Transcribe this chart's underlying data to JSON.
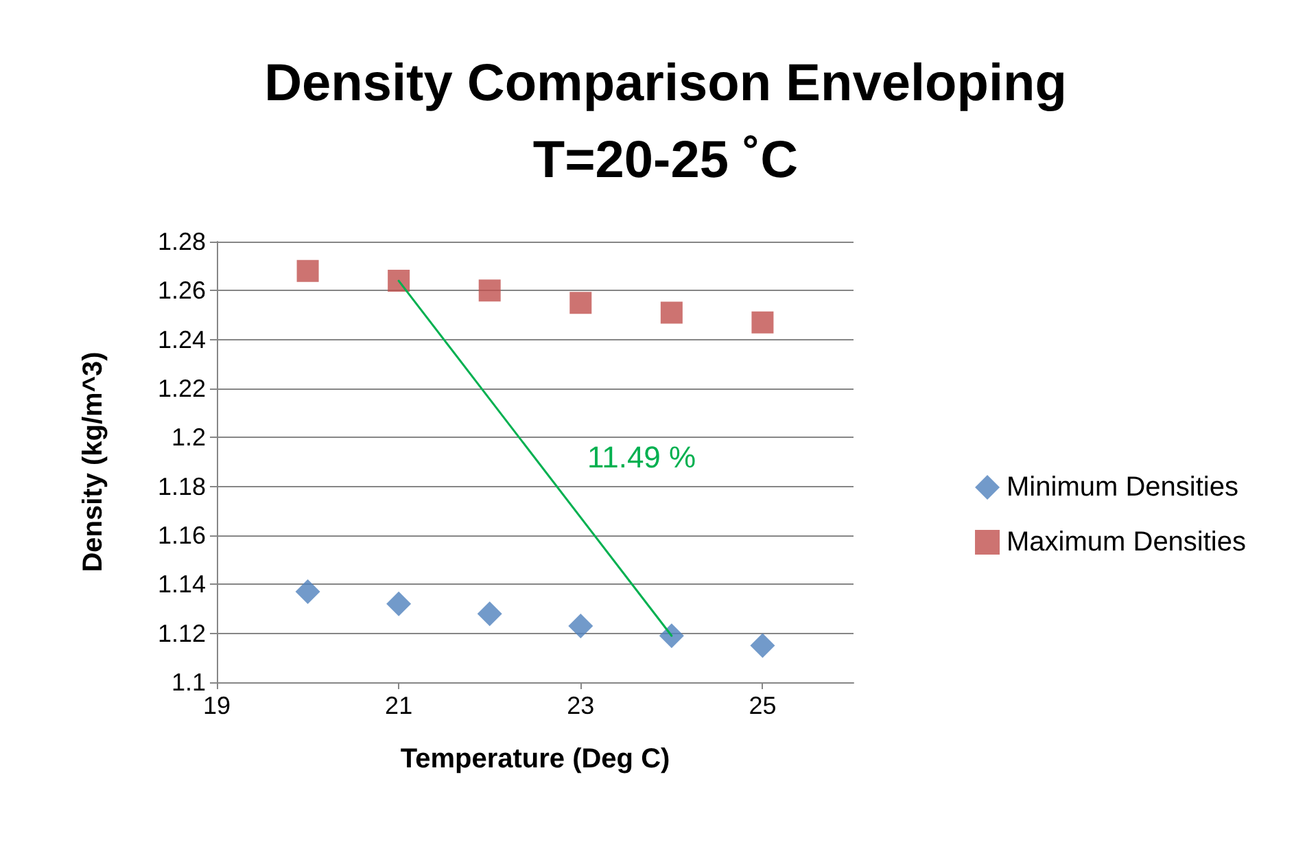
{
  "chart_data": {
    "type": "scatter",
    "title": "Density Comparison Enveloping\nT=20-25 ˚C",
    "xlabel": "Temperature (Deg C)",
    "ylabel": "Density (kg/m^3)",
    "x": [
      20,
      21,
      22,
      23,
      24,
      25
    ],
    "series": [
      {
        "name": "Minimum Densities",
        "color": "#4f81bd",
        "marker": "diamond",
        "values": [
          1.137,
          1.132,
          1.128,
          1.123,
          1.119,
          1.115
        ]
      },
      {
        "name": "Maximum Densities",
        "color": "#c0504d",
        "marker": "square",
        "values": [
          1.268,
          1.264,
          1.26,
          1.255,
          1.251,
          1.247
        ]
      },
      {
        "type": "line",
        "color": "#00b050",
        "marker": "none",
        "x": [
          21,
          24
        ],
        "values": [
          1.264,
          1.119
        ]
      }
    ],
    "annotations": [
      "11.49 %"
    ],
    "xlim": [
      19,
      26
    ],
    "xticks": [
      19,
      21,
      23,
      25
    ],
    "ylim": [
      1.1,
      1.28
    ],
    "yticks": [
      1.1,
      1.12,
      1.14,
      1.16,
      1.18,
      1.2,
      1.22,
      1.24,
      1.26,
      1.28
    ],
    "grid": "y",
    "legend": "right"
  }
}
